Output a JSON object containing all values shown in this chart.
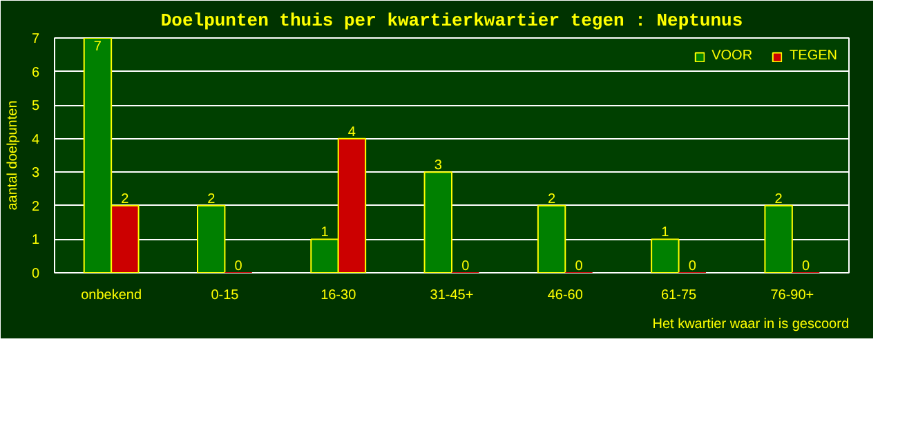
{
  "chart_data": {
    "type": "bar",
    "title": "Doelpunten thuis per kwartierkwartier tegen : Neptunus",
    "xlabel": "Het kwartier waar in is gescoord",
    "ylabel": "aantal doelpunten",
    "categories": [
      "onbekend",
      "0-15",
      "16-30",
      "31-45+",
      "46-60",
      "61-75",
      "76-90+"
    ],
    "series": [
      {
        "name": "VOOR",
        "color": "#008000",
        "values": [
          7,
          2,
          1,
          3,
          2,
          1,
          2
        ]
      },
      {
        "name": "TEGEN",
        "color": "#cc0000",
        "values": [
          2,
          0,
          4,
          0,
          0,
          0,
          0
        ]
      }
    ],
    "ylim": [
      0,
      7
    ],
    "yticks": [
      0,
      1,
      2,
      3,
      4,
      5,
      6,
      7
    ],
    "grid": "y",
    "legend": "top right",
    "data_labels": true
  }
}
